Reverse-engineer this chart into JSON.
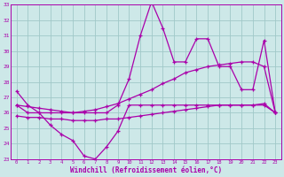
{
  "bg_color": "#cde8e8",
  "grid_color": "#a0c8c8",
  "line_color": "#aa00aa",
  "x": [
    0,
    1,
    2,
    3,
    4,
    5,
    6,
    7,
    8,
    9,
    10,
    11,
    12,
    13,
    14,
    15,
    16,
    17,
    18,
    19,
    20,
    21,
    22,
    23
  ],
  "line1": [
    27.4,
    26.5,
    26.0,
    26.0,
    26.0,
    26.0,
    26.0,
    26.0,
    26.0,
    26.5,
    28.2,
    31.0,
    33.2,
    31.5,
    29.3,
    29.3,
    30.8,
    30.8,
    29.0,
    29.0,
    27.5,
    27.5,
    30.7,
    26.0
  ],
  "line2": [
    26.5,
    26.4,
    26.3,
    26.2,
    26.1,
    26.0,
    26.1,
    26.2,
    26.4,
    26.6,
    26.9,
    27.2,
    27.5,
    27.9,
    28.2,
    28.6,
    28.8,
    29.0,
    29.1,
    29.2,
    29.3,
    29.3,
    29.0,
    26.0
  ],
  "line3": [
    25.8,
    25.7,
    25.7,
    25.6,
    25.6,
    25.5,
    25.5,
    25.5,
    25.6,
    25.6,
    25.7,
    25.8,
    25.9,
    26.0,
    26.1,
    26.2,
    26.3,
    26.4,
    26.5,
    26.5,
    26.5,
    26.5,
    26.6,
    26.0
  ],
  "line4": [
    26.5,
    26.0,
    26.0,
    25.2,
    24.6,
    24.2,
    23.2,
    23.0,
    23.8,
    24.8,
    26.5,
    26.5,
    26.5,
    26.5,
    26.5,
    26.5,
    26.5,
    26.5,
    26.5,
    26.5,
    26.5,
    26.5,
    26.5,
    26.0
  ],
  "ylim": [
    23,
    33
  ],
  "xlim": [
    -0.5,
    23.5
  ],
  "xlabel": "Windchill (Refroidissement éolien,°C)"
}
